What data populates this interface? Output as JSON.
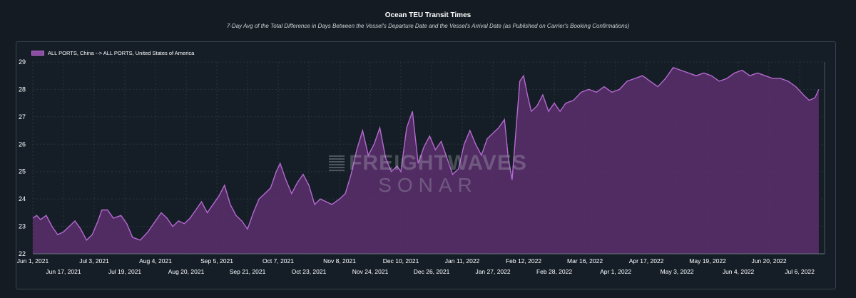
{
  "chart_data": {
    "type": "area",
    "title": "Ocean TEU Transit Times",
    "subtitle": "7-Day Avg of the Total Difference in Days Between the Vessel's Departure Date and the Vessel's Arrival Date (as Published on Carrier's Booking Confirmations)",
    "xlabel": "",
    "ylabel": "",
    "ylim": [
      22,
      29
    ],
    "xlim": [
      "2021-06-01",
      "2022-07-19"
    ],
    "y_ticks": [
      22,
      23,
      24,
      25,
      26,
      27,
      28,
      29
    ],
    "x_ticks_top": [
      "Jun 1, 2021",
      "Jul 3, 2021",
      "Aug 4, 2021",
      "Sep 5, 2021",
      "Oct 7, 2021",
      "Nov 8, 2021",
      "Dec 10, 2021",
      "Jan 11, 2022",
      "Feb 12, 2022",
      "Mar 16, 2022",
      "Apr 17, 2022",
      "May 19, 2022",
      "Jun 20, 2022"
    ],
    "x_ticks_bottom": [
      "Jun 17, 2021",
      "Jul 19, 2021",
      "Aug 20, 2021",
      "Sep 21, 2021",
      "Oct 23, 2021",
      "Nov 24, 2021",
      "Dec 26, 2021",
      "Jan 27, 2022",
      "Feb 28, 2022",
      "Apr 1, 2022",
      "May 3, 2022",
      "Jun 4, 2022",
      "Jul 6, 2022"
    ],
    "grid": true,
    "legend_position": "top-left",
    "colors": {
      "line": "#b56ad0",
      "fill": "#5a2f6e",
      "background": "#151e27"
    },
    "series": [
      {
        "name": "ALL PORTS, China --> ALL PORTS, United States of America",
        "points": [
          [
            "2021-06-01",
            23.3
          ],
          [
            "2021-06-03",
            23.4
          ],
          [
            "2021-06-05",
            23.25
          ],
          [
            "2021-06-08",
            23.4
          ],
          [
            "2021-06-11",
            23.0
          ],
          [
            "2021-06-14",
            22.7
          ],
          [
            "2021-06-17",
            22.8
          ],
          [
            "2021-06-20",
            23.0
          ],
          [
            "2021-06-23",
            23.2
          ],
          [
            "2021-06-26",
            22.9
          ],
          [
            "2021-06-29",
            22.5
          ],
          [
            "2021-07-02",
            22.7
          ],
          [
            "2021-07-05",
            23.2
          ],
          [
            "2021-07-07",
            23.6
          ],
          [
            "2021-07-10",
            23.6
          ],
          [
            "2021-07-13",
            23.3
          ],
          [
            "2021-07-17",
            23.4
          ],
          [
            "2021-07-20",
            23.1
          ],
          [
            "2021-07-23",
            22.6
          ],
          [
            "2021-07-27",
            22.5
          ],
          [
            "2021-07-31",
            22.8
          ],
          [
            "2021-08-04",
            23.2
          ],
          [
            "2021-08-07",
            23.5
          ],
          [
            "2021-08-10",
            23.3
          ],
          [
            "2021-08-13",
            23.0
          ],
          [
            "2021-08-16",
            23.2
          ],
          [
            "2021-08-19",
            23.1
          ],
          [
            "2021-08-22",
            23.3
          ],
          [
            "2021-08-25",
            23.6
          ],
          [
            "2021-08-28",
            23.9
          ],
          [
            "2021-08-31",
            23.5
          ],
          [
            "2021-09-03",
            23.8
          ],
          [
            "2021-09-06",
            24.1
          ],
          [
            "2021-09-09",
            24.5
          ],
          [
            "2021-09-12",
            23.8
          ],
          [
            "2021-09-15",
            23.4
          ],
          [
            "2021-09-18",
            23.2
          ],
          [
            "2021-09-21",
            22.9
          ],
          [
            "2021-09-24",
            23.5
          ],
          [
            "2021-09-27",
            24.0
          ],
          [
            "2021-09-30",
            24.2
          ],
          [
            "2021-10-03",
            24.4
          ],
          [
            "2021-10-06",
            25.0
          ],
          [
            "2021-10-08",
            25.3
          ],
          [
            "2021-10-11",
            24.7
          ],
          [
            "2021-10-14",
            24.2
          ],
          [
            "2021-10-17",
            24.6
          ],
          [
            "2021-10-20",
            24.9
          ],
          [
            "2021-10-23",
            24.5
          ],
          [
            "2021-10-26",
            23.8
          ],
          [
            "2021-10-29",
            24.0
          ],
          [
            "2021-11-01",
            23.9
          ],
          [
            "2021-11-04",
            23.8
          ],
          [
            "2021-11-08",
            24.0
          ],
          [
            "2021-11-11",
            24.2
          ],
          [
            "2021-11-14",
            24.9
          ],
          [
            "2021-11-17",
            25.8
          ],
          [
            "2021-11-20",
            26.5
          ],
          [
            "2021-11-23",
            25.6
          ],
          [
            "2021-11-26",
            26.0
          ],
          [
            "2021-11-29",
            26.6
          ],
          [
            "2021-12-02",
            25.5
          ],
          [
            "2021-12-05",
            25.0
          ],
          [
            "2021-12-08",
            25.2
          ],
          [
            "2021-12-10",
            25.0
          ],
          [
            "2021-12-13",
            26.6
          ],
          [
            "2021-12-16",
            27.2
          ],
          [
            "2021-12-19",
            25.3
          ],
          [
            "2021-12-22",
            25.9
          ],
          [
            "2021-12-25",
            26.3
          ],
          [
            "2021-12-28",
            25.8
          ],
          [
            "2021-12-31",
            26.1
          ],
          [
            "2022-01-03",
            25.5
          ],
          [
            "2022-01-06",
            24.9
          ],
          [
            "2022-01-09",
            25.1
          ],
          [
            "2022-01-12",
            26.0
          ],
          [
            "2022-01-15",
            26.5
          ],
          [
            "2022-01-18",
            26.0
          ],
          [
            "2022-01-21",
            25.6
          ],
          [
            "2022-01-24",
            26.2
          ],
          [
            "2022-01-27",
            26.4
          ],
          [
            "2022-01-30",
            26.6
          ],
          [
            "2022-02-02",
            26.9
          ],
          [
            "2022-02-04",
            25.5
          ],
          [
            "2022-02-06",
            24.7
          ],
          [
            "2022-02-08",
            26.5
          ],
          [
            "2022-02-10",
            28.3
          ],
          [
            "2022-02-12",
            28.5
          ],
          [
            "2022-02-14",
            27.8
          ],
          [
            "2022-02-16",
            27.2
          ],
          [
            "2022-02-19",
            27.4
          ],
          [
            "2022-02-22",
            27.8
          ],
          [
            "2022-02-25",
            27.2
          ],
          [
            "2022-02-28",
            27.5
          ],
          [
            "2022-03-03",
            27.2
          ],
          [
            "2022-03-06",
            27.5
          ],
          [
            "2022-03-10",
            27.6
          ],
          [
            "2022-03-14",
            27.9
          ],
          [
            "2022-03-18",
            28.0
          ],
          [
            "2022-03-22",
            27.9
          ],
          [
            "2022-03-26",
            28.1
          ],
          [
            "2022-03-30",
            27.9
          ],
          [
            "2022-04-03",
            28.0
          ],
          [
            "2022-04-07",
            28.3
          ],
          [
            "2022-04-11",
            28.4
          ],
          [
            "2022-04-15",
            28.5
          ],
          [
            "2022-04-19",
            28.3
          ],
          [
            "2022-04-23",
            28.1
          ],
          [
            "2022-04-27",
            28.4
          ],
          [
            "2022-05-01",
            28.8
          ],
          [
            "2022-05-05",
            28.7
          ],
          [
            "2022-05-09",
            28.6
          ],
          [
            "2022-05-13",
            28.5
          ],
          [
            "2022-05-17",
            28.6
          ],
          [
            "2022-05-21",
            28.5
          ],
          [
            "2022-05-25",
            28.3
          ],
          [
            "2022-05-29",
            28.4
          ],
          [
            "2022-06-02",
            28.6
          ],
          [
            "2022-06-06",
            28.7
          ],
          [
            "2022-06-10",
            28.5
          ],
          [
            "2022-06-14",
            28.6
          ],
          [
            "2022-06-18",
            28.5
          ],
          [
            "2022-06-22",
            28.4
          ],
          [
            "2022-06-26",
            28.4
          ],
          [
            "2022-06-30",
            28.3
          ],
          [
            "2022-07-04",
            28.1
          ],
          [
            "2022-07-08",
            27.8
          ],
          [
            "2022-07-11",
            27.6
          ],
          [
            "2022-07-14",
            27.7
          ],
          [
            "2022-07-16",
            28.0
          ]
        ]
      }
    ]
  }
}
